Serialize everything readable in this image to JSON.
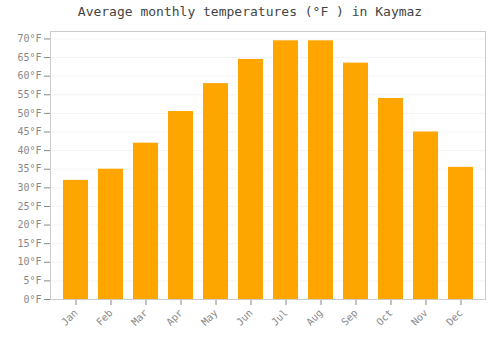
{
  "chart_data": {
    "type": "bar",
    "title": "Average monthly temperatures (°F ) in Kaymaz",
    "categories": [
      "Jan",
      "Feb",
      "Mar",
      "Apr",
      "May",
      "Jun",
      "Jul",
      "Aug",
      "Sep",
      "Oct",
      "Nov",
      "Dec"
    ],
    "values": [
      32,
      35,
      42,
      50.5,
      58,
      64.5,
      69.5,
      69.5,
      63.5,
      54,
      45,
      35.5
    ],
    "color": "#FFA500",
    "ylim": [
      0,
      72
    ],
    "yticks": [
      {
        "value": 0,
        "label": "0°F"
      },
      {
        "value": 5,
        "label": "5°F"
      },
      {
        "value": 10,
        "label": "10°F"
      },
      {
        "value": 15,
        "label": "15°F"
      },
      {
        "value": 20,
        "label": "20°F"
      },
      {
        "value": 25,
        "label": "25°F"
      },
      {
        "value": 30,
        "label": "30°F"
      },
      {
        "value": 35,
        "label": "35°F"
      },
      {
        "value": 40,
        "label": "40°F"
      },
      {
        "value": 45,
        "label": "45°F"
      },
      {
        "value": 50,
        "label": "50°F"
      },
      {
        "value": 55,
        "label": "55°F"
      },
      {
        "value": 60,
        "label": "60°F"
      },
      {
        "value": 65,
        "label": "65°F"
      },
      {
        "value": 70,
        "label": "70°F"
      }
    ],
    "grid": true
  }
}
